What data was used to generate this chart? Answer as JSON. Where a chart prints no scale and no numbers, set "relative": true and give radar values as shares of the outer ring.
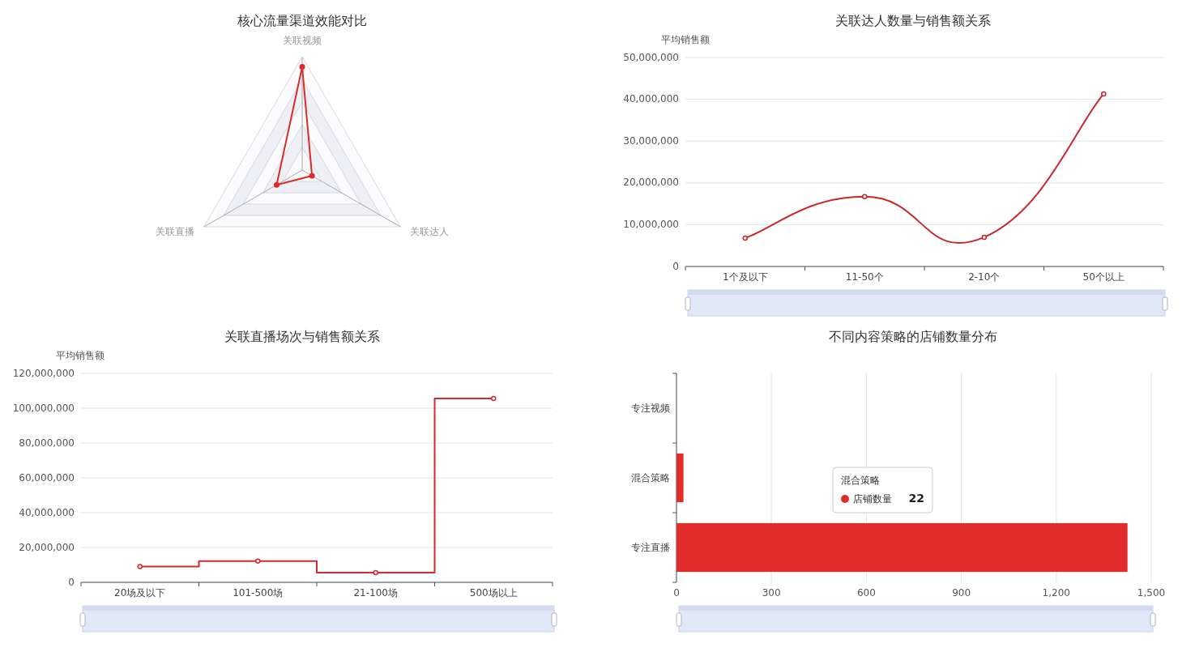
{
  "chart_data": [
    {
      "type": "radar",
      "title": "核心流量渠道效能对比",
      "categories": [
        "关联视频",
        "关联达人",
        "关联直播"
      ],
      "relative": true,
      "marker": "circle",
      "series": [
        {
          "color": "#e02a2a",
          "values": [
            0.91,
            0.1,
            0.26
          ]
        }
      ]
    },
    {
      "type": "line",
      "title": "关联达人数量与销售额关系",
      "ylabel": "平均销售额",
      "categories": [
        "1个及以下",
        "11-50个",
        "2-10个",
        "50个以上"
      ],
      "series": [
        {
          "color": "#c8282a",
          "values": [
            6800000,
            16700000,
            7000000,
            41300000
          ]
        }
      ],
      "ylim": [
        0,
        50000000
      ],
      "yticks": [
        {
          "value": 0,
          "label": "0"
        },
        {
          "value": 10000000,
          "label": "10,000,000"
        },
        {
          "value": 20000000,
          "label": "20,000,000"
        },
        {
          "value": 30000000,
          "label": "30,000,000"
        },
        {
          "value": 40000000,
          "label": "40,000,000"
        },
        {
          "value": 50000000,
          "label": "50,000,000"
        }
      ],
      "grid": "y",
      "marker": "circle"
    },
    {
      "type": "step",
      "title": "关联直播场次与销售额关系",
      "ylabel": "平均销售额",
      "categories": [
        "20场及以下",
        "101-500场",
        "21-100场",
        "500场以上"
      ],
      "series": [
        {
          "color": "#d42a2a",
          "values": [
            9100000,
            12200000,
            5600000,
            105600000
          ]
        }
      ],
      "ylim": [
        0,
        120000000
      ],
      "yticks": [
        {
          "value": 0,
          "label": "0"
        },
        {
          "value": 20000000,
          "label": "20,000,000"
        },
        {
          "value": 40000000,
          "label": "40,000,000"
        },
        {
          "value": 60000000,
          "label": "60,000,000"
        },
        {
          "value": 80000000,
          "label": "80,000,000"
        },
        {
          "value": 100000000,
          "label": "100,000,000"
        },
        {
          "value": 120000000,
          "label": "120,000,000"
        }
      ],
      "grid": "y",
      "marker": "circle"
    },
    {
      "type": "bar",
      "orientation": "horizontal",
      "title": "不同内容策略的店铺数量分布",
      "categories": [
        "专注视频",
        "混合策略",
        "专注直播"
      ],
      "series": [
        {
          "name": "店铺数量",
          "color": "#e02c2a",
          "values": [
            null,
            22,
            1425
          ]
        }
      ],
      "annotations": [
        "混合策略",
        "22"
      ],
      "xlim": [
        0,
        1500
      ],
      "xticks": [
        0,
        300,
        600,
        900,
        {
          "value": 1200,
          "label": "1,200"
        },
        {
          "value": 1500,
          "label": "1,500"
        }
      ],
      "grid": "x"
    }
  ]
}
